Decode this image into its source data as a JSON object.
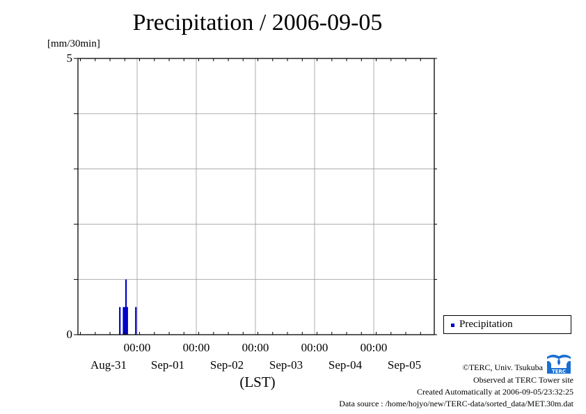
{
  "title": "Precipitation / 2006-09-05",
  "unit": "[mm/30min]",
  "y_ticks": [
    "5",
    "0"
  ],
  "x_time_labels": [
    "00:00",
    "00:00",
    "00:00",
    "00:00",
    "00:00"
  ],
  "x_date_labels": [
    "Aug-31",
    "Sep-01",
    "Sep-02",
    "Sep-03",
    "Sep-04",
    "Sep-05"
  ],
  "xlabel": "(LST)",
  "legend": {
    "label": "Precipitation",
    "color": "#0000c8"
  },
  "credits": {
    "line1": "©TERC, Univ. Tsukuba",
    "line2": "Observed at TERC Tower site",
    "line3": "Created Automatically at 2006-09-05/23:32:25",
    "line4": "Data source : /home/hojyo/new/TERC-data/sorted_data/MET.30m.dat"
  },
  "logo_icon": "terc-logo-icon",
  "chart_data": {
    "type": "bar",
    "title": "Precipitation / 2006-09-05",
    "ylabel": "[mm/30min]",
    "xlabel": "(LST)",
    "ylim": [
      0,
      5
    ],
    "x_range_days": [
      -0.98,
      5.0
    ],
    "x_origin_date": "2006-09-01 00:00",
    "grid": true,
    "legend_position": "right",
    "series": [
      {
        "name": "Precipitation",
        "color": "#0000c8",
        "points": [
          {
            "t": "2006-08-31 17:00",
            "value": 0.5
          },
          {
            "t": "2006-08-31 18:30",
            "value": 0.5
          },
          {
            "t": "2006-08-31 19:00",
            "value": 0.5
          },
          {
            "t": "2006-08-31 19:30",
            "value": 1.0
          },
          {
            "t": "2006-08-31 20:00",
            "value": 0.5
          },
          {
            "t": "2006-08-31 23:30",
            "value": 0.5
          }
        ]
      }
    ]
  }
}
